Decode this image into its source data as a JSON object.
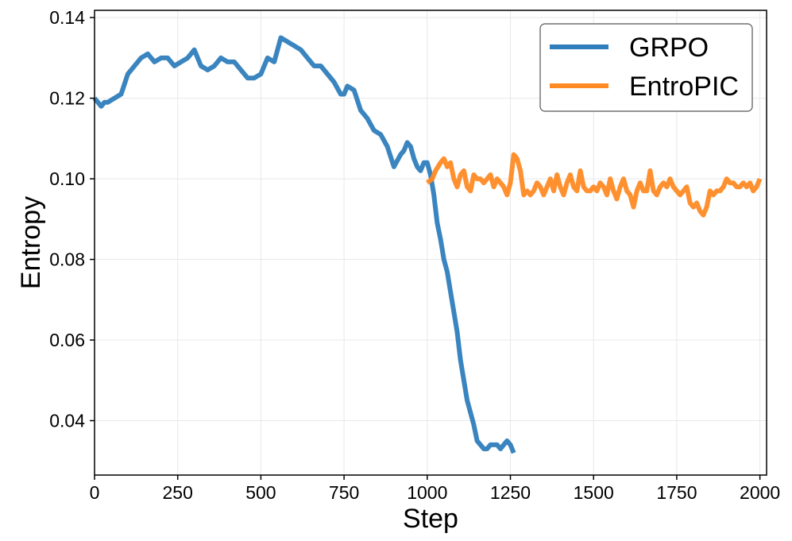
{
  "chart_data": {
    "type": "line",
    "title": "",
    "xlabel": "Step",
    "ylabel": "Entropy",
    "xlim": [
      0,
      2020
    ],
    "ylim": [
      0.0265,
      0.1418
    ],
    "xticks": [
      0,
      250,
      500,
      750,
      1000,
      1250,
      1500,
      1750,
      2000
    ],
    "yticks": [
      0.04,
      0.06,
      0.08,
      0.1,
      0.12,
      0.14
    ],
    "xtick_labels": [
      "0",
      "250",
      "500",
      "750",
      "1000",
      "1250",
      "1500",
      "1750",
      "2000"
    ],
    "ytick_labels": [
      "0.04",
      "0.06",
      "0.08",
      "0.10",
      "0.12",
      "0.14"
    ],
    "grid": true,
    "legend_position": "top-right",
    "series": [
      {
        "name": "GRPO",
        "color": "#2f7ebc",
        "x": [
          0,
          10,
          20,
          30,
          40,
          60,
          80,
          100,
          120,
          140,
          160,
          180,
          200,
          220,
          240,
          260,
          280,
          300,
          320,
          340,
          360,
          380,
          400,
          420,
          440,
          460,
          480,
          500,
          520,
          540,
          560,
          580,
          600,
          620,
          640,
          660,
          680,
          700,
          720,
          740,
          750,
          760,
          780,
          800,
          820,
          840,
          860,
          880,
          900,
          920,
          930,
          940,
          950,
          960,
          970,
          980,
          990,
          1000,
          1010,
          1020,
          1030,
          1040,
          1050,
          1060,
          1070,
          1080,
          1090,
          1100,
          1110,
          1120,
          1130,
          1140,
          1150,
          1160,
          1170,
          1180,
          1190,
          1200,
          1210,
          1220,
          1230,
          1240,
          1250,
          1260
        ],
        "y": [
          0.12,
          0.119,
          0.118,
          0.119,
          0.119,
          0.12,
          0.121,
          0.126,
          0.128,
          0.13,
          0.131,
          0.129,
          0.13,
          0.13,
          0.128,
          0.129,
          0.13,
          0.132,
          0.128,
          0.127,
          0.128,
          0.13,
          0.129,
          0.129,
          0.127,
          0.125,
          0.125,
          0.126,
          0.13,
          0.129,
          0.135,
          0.134,
          0.133,
          0.132,
          0.13,
          0.128,
          0.128,
          0.126,
          0.124,
          0.121,
          0.121,
          0.123,
          0.122,
          0.117,
          0.115,
          0.112,
          0.111,
          0.108,
          0.103,
          0.106,
          0.107,
          0.109,
          0.108,
          0.105,
          0.103,
          0.102,
          0.104,
          0.104,
          0.101,
          0.096,
          0.089,
          0.085,
          0.08,
          0.077,
          0.072,
          0.067,
          0.062,
          0.055,
          0.05,
          0.045,
          0.042,
          0.039,
          0.035,
          0.034,
          0.033,
          0.033,
          0.034,
          0.034,
          0.034,
          0.033,
          0.034,
          0.035,
          0.034,
          0.032
        ]
      },
      {
        "name": "EntroPIC",
        "color": "#ff8a24",
        "x": [
          1000,
          1015,
          1025,
          1040,
          1050,
          1060,
          1070,
          1080,
          1090,
          1100,
          1110,
          1120,
          1130,
          1140,
          1150,
          1160,
          1170,
          1180,
          1190,
          1200,
          1210,
          1220,
          1230,
          1240,
          1250,
          1260,
          1270,
          1280,
          1290,
          1300,
          1310,
          1320,
          1330,
          1340,
          1350,
          1360,
          1370,
          1380,
          1390,
          1400,
          1410,
          1420,
          1430,
          1440,
          1450,
          1460,
          1470,
          1480,
          1490,
          1500,
          1510,
          1520,
          1530,
          1540,
          1550,
          1560,
          1570,
          1580,
          1590,
          1600,
          1610,
          1620,
          1630,
          1640,
          1650,
          1660,
          1670,
          1680,
          1690,
          1700,
          1710,
          1720,
          1730,
          1740,
          1750,
          1760,
          1770,
          1780,
          1790,
          1800,
          1810,
          1820,
          1830,
          1840,
          1850,
          1860,
          1870,
          1880,
          1890,
          1900,
          1910,
          1920,
          1930,
          1940,
          1950,
          1960,
          1970,
          1980,
          1990,
          2000
        ],
        "y": [
          0.099,
          0.1,
          0.102,
          0.104,
          0.105,
          0.103,
          0.104,
          0.1,
          0.098,
          0.101,
          0.102,
          0.098,
          0.097,
          0.101,
          0.1,
          0.1,
          0.099,
          0.1,
          0.101,
          0.098,
          0.1,
          0.099,
          0.098,
          0.096,
          0.099,
          0.106,
          0.105,
          0.102,
          0.096,
          0.097,
          0.096,
          0.097,
          0.099,
          0.098,
          0.096,
          0.098,
          0.1,
          0.097,
          0.101,
          0.098,
          0.096,
          0.099,
          0.101,
          0.098,
          0.097,
          0.102,
          0.098,
          0.097,
          0.097,
          0.098,
          0.097,
          0.099,
          0.098,
          0.096,
          0.1,
          0.097,
          0.095,
          0.098,
          0.1,
          0.097,
          0.096,
          0.093,
          0.097,
          0.099,
          0.097,
          0.097,
          0.102,
          0.097,
          0.096,
          0.098,
          0.099,
          0.098,
          0.1,
          0.098,
          0.097,
          0.096,
          0.097,
          0.098,
          0.094,
          0.093,
          0.094,
          0.092,
          0.091,
          0.093,
          0.097,
          0.096,
          0.097,
          0.097,
          0.098,
          0.1,
          0.099,
          0.099,
          0.098,
          0.098,
          0.099,
          0.098,
          0.099,
          0.097,
          0.098,
          0.1
        ]
      }
    ]
  }
}
